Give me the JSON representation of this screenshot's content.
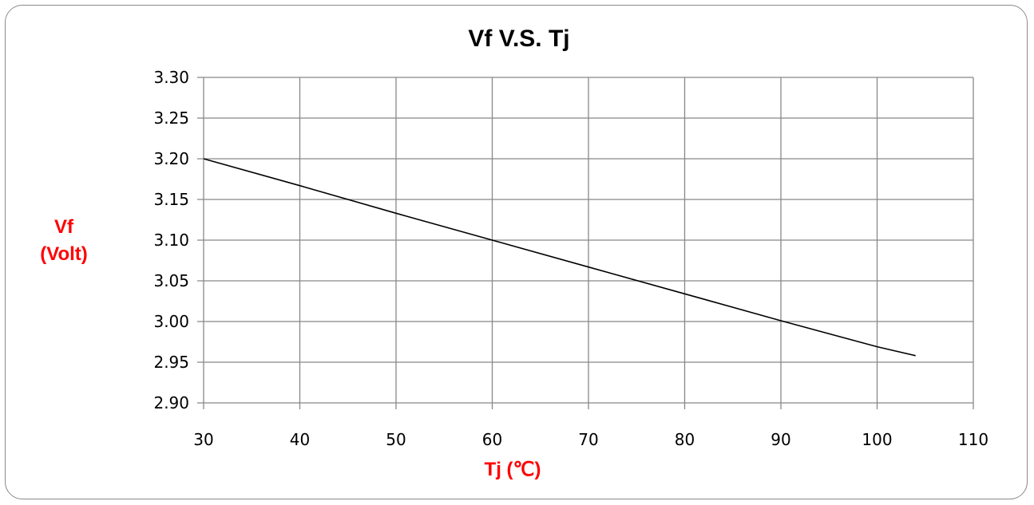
{
  "chart_data": {
    "type": "line",
    "title": "Vf  V.S. Tj",
    "xlabel": "Tj (℃)",
    "ylabel_lines": [
      "Vf",
      "(Volt)"
    ],
    "xlim": [
      30,
      110
    ],
    "ylim": [
      2.9,
      3.3
    ],
    "x_ticks": [
      "30",
      "40",
      "50",
      "60",
      "70",
      "80",
      "90",
      "100",
      "110"
    ],
    "y_ticks": [
      "3.30",
      "3.25",
      "3.20",
      "3.15",
      "3.10",
      "3.05",
      "3.00",
      "2.95",
      "2.90"
    ],
    "grid": true,
    "legend": "none",
    "series": [
      {
        "x": [
          30,
          40,
          50,
          60,
          70,
          80,
          90,
          100,
          104
        ],
        "y": [
          3.2,
          3.167,
          3.133,
          3.1,
          3.067,
          3.034,
          3.001,
          2.969,
          2.958
        ],
        "color": "#000000"
      }
    ],
    "colors": {
      "axis_label": "#ff0000",
      "grid": "#888888",
      "frame": "#8a8a8a"
    }
  }
}
